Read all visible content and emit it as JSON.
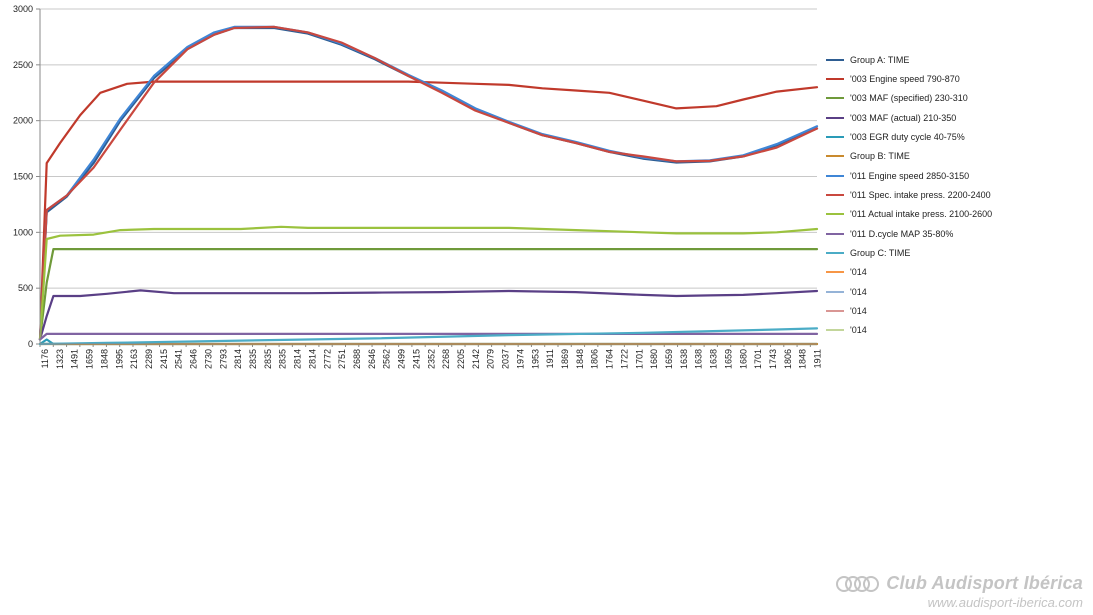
{
  "chart_data": {
    "type": "line",
    "title": "",
    "xlabel": "",
    "ylabel": "",
    "ylim": [
      0,
      3000
    ],
    "yticks": [
      0,
      500,
      1000,
      1500,
      2000,
      2500,
      3000
    ],
    "grid": "horizontal",
    "legend_position": "right",
    "x_tick_labels": [
      "1176",
      "1323",
      "1491",
      "1659",
      "1848",
      "1995",
      "2163",
      "2289",
      "2415",
      "2541",
      "2646",
      "2730",
      "2793",
      "2814",
      "2835",
      "2835",
      "2835",
      "2814",
      "2814",
      "2772",
      "2751",
      "2688",
      "2646",
      "2562",
      "2499",
      "2415",
      "2352",
      "2268",
      "2205",
      "2142",
      "2079",
      "2037",
      "1974",
      "1953",
      "1911",
      "1869",
      "1848",
      "1806",
      "1764",
      "1722",
      "1701",
      "1680",
      "1659",
      "1638",
      "1638",
      "1638",
      "1659",
      "1680",
      "1701",
      "1743",
      "1806",
      "1848",
      "1911"
    ],
    "series": [
      {
        "name": "Group A: TIME",
        "color": "#2e5d92",
        "values": [
          [
            0,
            40
          ],
          [
            1,
            1180
          ],
          [
            4,
            1320
          ],
          [
            8,
            1620
          ],
          [
            12,
            2000
          ],
          [
            17,
            2380
          ],
          [
            22,
            2640
          ],
          [
            26,
            2770
          ],
          [
            29,
            2830
          ],
          [
            35,
            2830
          ],
          [
            40,
            2780
          ],
          [
            45,
            2680
          ],
          [
            50,
            2550
          ],
          [
            55,
            2400
          ],
          [
            60,
            2260
          ],
          [
            65,
            2100
          ],
          [
            70,
            1980
          ],
          [
            75,
            1870
          ],
          [
            80,
            1800
          ],
          [
            85,
            1720
          ],
          [
            90,
            1660
          ],
          [
            95,
            1625
          ],
          [
            100,
            1635
          ],
          [
            105,
            1680
          ],
          [
            110,
            1780
          ],
          [
            116,
            1930
          ]
        ]
      },
      {
        "name": "'003 Engine speed 790-870",
        "color": "#c0392b",
        "values": [
          [
            0,
            40
          ],
          [
            1,
            1620
          ],
          [
            3,
            1800
          ],
          [
            6,
            2050
          ],
          [
            9,
            2250
          ],
          [
            13,
            2330
          ],
          [
            17,
            2350
          ],
          [
            50,
            2350
          ],
          [
            55,
            2350
          ],
          [
            60,
            2340
          ],
          [
            65,
            2330
          ],
          [
            70,
            2320
          ],
          [
            75,
            2290
          ],
          [
            80,
            2270
          ],
          [
            85,
            2250
          ],
          [
            90,
            2180
          ],
          [
            95,
            2110
          ],
          [
            98,
            2120
          ],
          [
            101,
            2130
          ],
          [
            105,
            2190
          ],
          [
            110,
            2260
          ],
          [
            116,
            2300
          ]
        ]
      },
      {
        "name": "'003 MAF (specified) 230-310",
        "color": "#6f9a3a",
        "values": [
          [
            0,
            40
          ],
          [
            1,
            550
          ],
          [
            2,
            850
          ],
          [
            116,
            850
          ]
        ]
      },
      {
        "name": "'003 MAF (actual)  210-350",
        "color": "#5a3f86",
        "values": [
          [
            0,
            40
          ],
          [
            1,
            250
          ],
          [
            2,
            430
          ],
          [
            6,
            430
          ],
          [
            10,
            450
          ],
          [
            15,
            480
          ],
          [
            20,
            455
          ],
          [
            30,
            455
          ],
          [
            40,
            455
          ],
          [
            50,
            460
          ],
          [
            60,
            465
          ],
          [
            70,
            475
          ],
          [
            80,
            465
          ],
          [
            90,
            440
          ],
          [
            95,
            430
          ],
          [
            100,
            435
          ],
          [
            105,
            440
          ],
          [
            110,
            455
          ],
          [
            116,
            475
          ]
        ]
      },
      {
        "name": "'003 EGR duty cycle 40-75%",
        "color": "#2a9bb7",
        "values": [
          [
            0,
            0
          ],
          [
            1,
            40
          ],
          [
            2,
            0
          ],
          [
            116,
            0
          ]
        ]
      },
      {
        "name": "Group B: TIME",
        "color": "#c98a2e",
        "values": [
          [
            0,
            0
          ],
          [
            116,
            0
          ]
        ]
      },
      {
        "name": "'011 Engine speed 2850-3150",
        "color": "#3f86d6",
        "values": [
          [
            0,
            40
          ],
          [
            1,
            1200
          ],
          [
            4,
            1330
          ],
          [
            8,
            1650
          ],
          [
            12,
            2020
          ],
          [
            17,
            2400
          ],
          [
            22,
            2660
          ],
          [
            26,
            2790
          ],
          [
            29,
            2840
          ],
          [
            35,
            2840
          ],
          [
            40,
            2790
          ],
          [
            45,
            2690
          ],
          [
            50,
            2560
          ],
          [
            55,
            2410
          ],
          [
            60,
            2270
          ],
          [
            65,
            2110
          ],
          [
            70,
            1990
          ],
          [
            75,
            1880
          ],
          [
            80,
            1810
          ],
          [
            85,
            1730
          ],
          [
            90,
            1670
          ],
          [
            95,
            1635
          ],
          [
            100,
            1645
          ],
          [
            105,
            1690
          ],
          [
            110,
            1790
          ],
          [
            116,
            1950
          ]
        ]
      },
      {
        "name": "'011 Spec. intake press. 2200-2400",
        "color": "#c9483f",
        "values": [
          [
            0,
            40
          ],
          [
            1,
            1200
          ],
          [
            4,
            1330
          ],
          [
            8,
            1580
          ],
          [
            12,
            1920
          ],
          [
            17,
            2340
          ],
          [
            22,
            2640
          ],
          [
            26,
            2770
          ],
          [
            29,
            2830
          ],
          [
            35,
            2840
          ],
          [
            40,
            2790
          ],
          [
            45,
            2700
          ],
          [
            50,
            2560
          ],
          [
            55,
            2400
          ],
          [
            60,
            2250
          ],
          [
            65,
            2090
          ],
          [
            70,
            1980
          ],
          [
            75,
            1870
          ],
          [
            80,
            1800
          ],
          [
            85,
            1720
          ],
          [
            90,
            1680
          ],
          [
            95,
            1635
          ],
          [
            100,
            1640
          ],
          [
            105,
            1680
          ],
          [
            110,
            1760
          ],
          [
            116,
            1930
          ]
        ]
      },
      {
        "name": "'011 Actual intake press. 2100-2600",
        "color": "#9bc23e",
        "values": [
          [
            0,
            40
          ],
          [
            1,
            940
          ],
          [
            3,
            970
          ],
          [
            8,
            980
          ],
          [
            12,
            1020
          ],
          [
            17,
            1030
          ],
          [
            30,
            1030
          ],
          [
            36,
            1050
          ],
          [
            40,
            1040
          ],
          [
            50,
            1040
          ],
          [
            60,
            1040
          ],
          [
            70,
            1040
          ],
          [
            75,
            1030
          ],
          [
            80,
            1020
          ],
          [
            85,
            1010
          ],
          [
            90,
            1000
          ],
          [
            95,
            990
          ],
          [
            105,
            990
          ],
          [
            110,
            1000
          ],
          [
            116,
            1030
          ]
        ]
      },
      {
        "name": "'011 D.cycle MAP 35-80%",
        "color": "#8064a2",
        "values": [
          [
            0,
            40
          ],
          [
            1,
            90
          ],
          [
            116,
            90
          ]
        ]
      },
      {
        "name": "Group C: TIME",
        "color": "#4bacc6",
        "values": [
          [
            0,
            0
          ],
          [
            10,
            10
          ],
          [
            30,
            30
          ],
          [
            50,
            50
          ],
          [
            70,
            80
          ],
          [
            90,
            100
          ],
          [
            110,
            130
          ],
          [
            116,
            140
          ]
        ]
      },
      {
        "name": "'014",
        "color": "#f79646",
        "values": []
      },
      {
        "name": "'014",
        "color": "#95b3d7",
        "values": []
      },
      {
        "name": "'014",
        "color": "#d99694",
        "values": []
      },
      {
        "name": "'014",
        "color": "#c3d69b",
        "values": []
      }
    ]
  },
  "watermark": {
    "brand": "Club Audisport Ibérica",
    "url": "www.audisport-iberica.com"
  }
}
